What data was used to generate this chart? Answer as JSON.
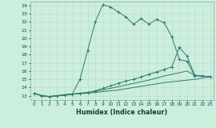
{
  "xlabel": "Humidex (Indice chaleur)",
  "bg_color": "#cceedd",
  "line_color": "#2d7b6b",
  "xlim": [
    -0.5,
    23.5
  ],
  "ylim": [
    12.5,
    24.5
  ],
  "yticks": [
    13,
    14,
    15,
    16,
    17,
    18,
    19,
    20,
    21,
    22,
    23,
    24
  ],
  "xticks": [
    0,
    1,
    2,
    3,
    4,
    5,
    6,
    7,
    8,
    9,
    10,
    11,
    12,
    13,
    14,
    15,
    16,
    17,
    18,
    19,
    20,
    21,
    22,
    23
  ],
  "series": [
    {
      "x": [
        0,
        1,
        2,
        3,
        4,
        5,
        6,
        7,
        8,
        9,
        10,
        11,
        12,
        13,
        14,
        15,
        16,
        17,
        18,
        19,
        20,
        21,
        22,
        23
      ],
      "y": [
        13.3,
        13.0,
        12.9,
        13.0,
        13.1,
        13.2,
        15.0,
        18.5,
        22.0,
        24.1,
        23.8,
        23.2,
        22.6,
        21.7,
        22.4,
        21.7,
        22.3,
        21.9,
        20.2,
        17.4,
        17.2,
        15.4,
        15.4,
        15.3
      ],
      "marker": true
    },
    {
      "x": [
        0,
        1,
        2,
        3,
        4,
        5,
        6,
        7,
        8,
        9,
        10,
        11,
        12,
        13,
        14,
        15,
        16,
        17,
        18,
        19,
        20,
        21,
        22,
        23
      ],
      "y": [
        13.3,
        13.0,
        12.9,
        13.0,
        13.1,
        13.2,
        13.3,
        13.4,
        13.6,
        13.9,
        14.2,
        14.5,
        14.8,
        15.0,
        15.3,
        15.6,
        15.9,
        16.2,
        16.5,
        18.9,
        17.8,
        15.5,
        15.4,
        15.3
      ],
      "marker": true
    },
    {
      "x": [
        0,
        1,
        2,
        3,
        4,
        5,
        6,
        7,
        8,
        9,
        10,
        11,
        12,
        13,
        14,
        15,
        16,
        17,
        18,
        19,
        20,
        21,
        22,
        23
      ],
      "y": [
        13.3,
        13.0,
        12.9,
        13.0,
        13.1,
        13.2,
        13.3,
        13.4,
        13.55,
        13.7,
        13.9,
        14.1,
        14.3,
        14.5,
        14.7,
        14.9,
        15.15,
        15.4,
        15.6,
        15.8,
        16.0,
        15.5,
        15.4,
        15.3
      ],
      "marker": false
    },
    {
      "x": [
        0,
        1,
        2,
        3,
        4,
        5,
        6,
        7,
        8,
        9,
        10,
        11,
        12,
        13,
        14,
        15,
        16,
        17,
        18,
        19,
        20,
        21,
        22,
        23
      ],
      "y": [
        13.3,
        13.0,
        12.9,
        13.0,
        13.1,
        13.2,
        13.25,
        13.3,
        13.4,
        13.5,
        13.6,
        13.7,
        13.85,
        14.0,
        14.15,
        14.3,
        14.45,
        14.6,
        14.7,
        14.8,
        14.9,
        15.0,
        15.15,
        15.3
      ],
      "marker": false
    }
  ]
}
